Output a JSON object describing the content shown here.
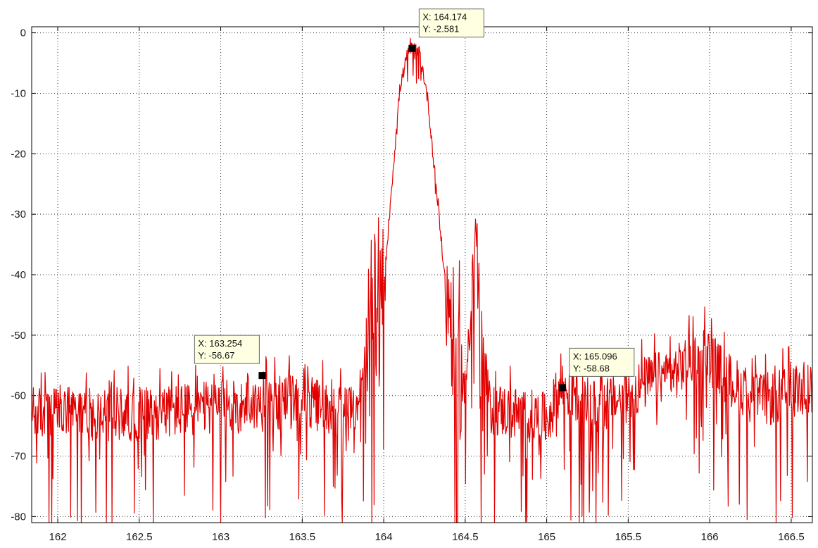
{
  "chart_data": {
    "type": "line",
    "title": "",
    "xlabel": "",
    "ylabel": "",
    "xlim": [
      161.84,
      166.63
    ],
    "ylim": [
      -81,
      1
    ],
    "grid": true,
    "x_ticks": [
      162,
      162.5,
      163,
      163.5,
      164,
      164.5,
      165,
      165.5,
      166,
      166.5
    ],
    "x_tick_labels": [
      "162",
      "162.5",
      "163",
      "163.5",
      "164",
      "164.5",
      "165",
      "165.5",
      "166",
      "166.5"
    ],
    "y_ticks": [
      0,
      -10,
      -20,
      -30,
      -40,
      -50,
      -60,
      -70,
      -80
    ],
    "y_tick_labels": [
      "0",
      "-10",
      "-20",
      "-30",
      "-40",
      "-50",
      "-60",
      "-70",
      "-80"
    ],
    "line_color": "#e00000",
    "series": [
      {
        "values": [
          {
            "x": 161.84,
            "y": -63
          },
          {
            "x": 162.0,
            "y": -63
          },
          {
            "x": 162.5,
            "y": -63
          },
          {
            "x": 163.0,
            "y": -62
          },
          {
            "x": 163.5,
            "y": -61
          },
          {
            "x": 163.8,
            "y": -63
          },
          {
            "x": 163.88,
            "y": -58
          },
          {
            "x": 163.95,
            "y": -52
          },
          {
            "x": 164.0,
            "y": -42
          },
          {
            "x": 164.05,
            "y": -25
          },
          {
            "x": 164.1,
            "y": -9
          },
          {
            "x": 164.15,
            "y": -3
          },
          {
            "x": 164.174,
            "y": -2.581
          },
          {
            "x": 164.22,
            "y": -3
          },
          {
            "x": 164.27,
            "y": -11
          },
          {
            "x": 164.32,
            "y": -25
          },
          {
            "x": 164.38,
            "y": -42
          },
          {
            "x": 164.45,
            "y": -54
          },
          {
            "x": 164.5,
            "y": -60
          },
          {
            "x": 164.53,
            "y": -45
          },
          {
            "x": 164.56,
            "y": -34
          },
          {
            "x": 164.6,
            "y": -50
          },
          {
            "x": 164.65,
            "y": -62
          },
          {
            "x": 165.0,
            "y": -64
          },
          {
            "x": 165.096,
            "y": -58.68
          },
          {
            "x": 165.3,
            "y": -62
          },
          {
            "x": 165.5,
            "y": -60
          },
          {
            "x": 165.6,
            "y": -58
          },
          {
            "x": 165.8,
            "y": -56
          },
          {
            "x": 165.95,
            "y": -52
          },
          {
            "x": 166.1,
            "y": -57
          },
          {
            "x": 166.3,
            "y": -61
          },
          {
            "x": 166.6,
            "y": -59
          }
        ]
      }
    ],
    "annotations": [
      {
        "x": 164.174,
        "y": -2.581,
        "x_text": "X: 164.174",
        "y_text": "Y: -2.581",
        "placement": "above-right"
      },
      {
        "x": 163.254,
        "y": -56.67,
        "x_text": "X: 163.254",
        "y_text": "Y: -56.67",
        "placement": "above-left"
      },
      {
        "x": 165.096,
        "y": -58.68,
        "x_text": "X: 165.096",
        "y_text": "Y: -58.68",
        "placement": "above-right"
      }
    ]
  }
}
